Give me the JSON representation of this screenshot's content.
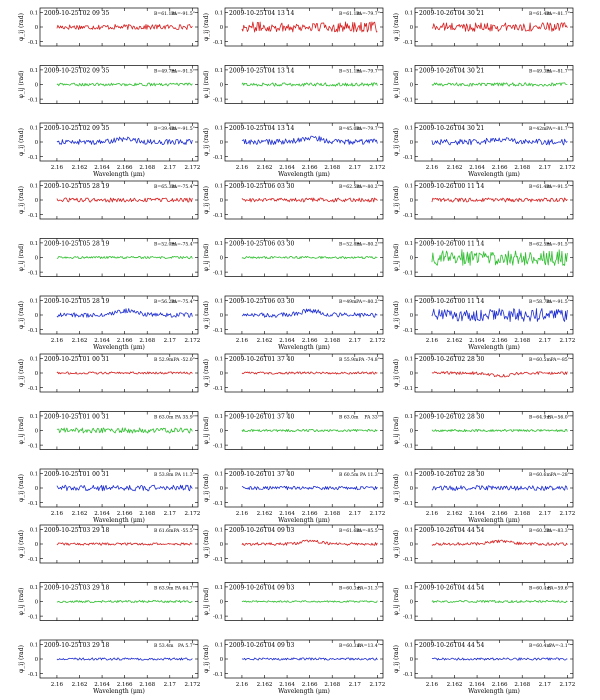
{
  "figure": {
    "x_label": "Wavelength (μm)",
    "x_ticks": [
      "2.16",
      "2.162",
      "2.164",
      "2.166",
      "2.168",
      "2.17",
      "2.172"
    ],
    "y_ticks": [
      "0.1",
      "0",
      "-0.1"
    ],
    "x_range": [
      2.1585,
      2.1725
    ],
    "y_range": [
      -0.13,
      0.13
    ],
    "colors": {
      "red": "#d62020",
      "green": "#2fbf2f",
      "blue": "#1f2fd0",
      "axis": "#000000"
    }
  },
  "chart_data": [
    {
      "type": "line",
      "panel": "r1c1",
      "row": 1,
      "col": 1,
      "date": "2009-10-25T02 09 35",
      "baseline": "B=61.1m",
      "pa": "PA=-91.5°",
      "ylabel": "φ_ij (rad)",
      "color": "red",
      "series": [
        {
          "x": [
            2.16,
            2.172
          ],
          "y": [
            0,
            0
          ]
        }
      ]
    },
    {
      "type": "line",
      "panel": "r1c1",
      "row": 1,
      "col": 1,
      "date": "2009-10-25T02 09 35",
      "baseline": "B=49.7m",
      "pa": "PA=-91.5°",
      "ylabel": "φ_ij (rad)",
      "color": "green",
      "series": [
        {
          "x": [
            2.16,
            2.172
          ],
          "y": [
            0,
            0
          ]
        }
      ]
    },
    {
      "type": "line",
      "panel": "r1c1",
      "row": 1,
      "col": 1,
      "date": "2009-10-25T02 09 35",
      "baseline": "B=39.4m",
      "pa": "PA=-91.5°",
      "ylabel": "φ_ij (rad)",
      "color": "blue",
      "series": [
        {
          "x": [
            2.16,
            2.172
          ],
          "y": [
            0,
            0
          ]
        }
      ]
    }
  ],
  "panels": [
    {
      "row": 1,
      "col": 1,
      "color": "red",
      "date": "2009-10-25T02 09 35",
      "b": "B=61.1m",
      "pa": "PA=-91.5°",
      "ylabel": "φ_ij (rad)",
      "noise": 0.018,
      "feature": 0.0
    },
    {
      "row": 1,
      "col": 2,
      "color": "red",
      "date": "2009-10-25T04 13 14",
      "b": "B=61.1m",
      "pa": "PA=-79.7°",
      "ylabel": "φ_ij (rad)",
      "noise": 0.035,
      "feature": 0.0
    },
    {
      "row": 1,
      "col": 3,
      "color": "red",
      "date": "2009-10-26T04 30 21",
      "b": "B=61.4m",
      "pa": "PA=-81.7°",
      "ylabel": "φ_ij (rad)",
      "noise": 0.03,
      "feature": 0.0
    },
    {
      "row": 2,
      "col": 1,
      "color": "green",
      "date": "2009-10-25T02 09 35",
      "b": "B=49.7m",
      "pa": "PA=-91.5°",
      "ylabel": "φ_ij (rad)",
      "noise": 0.01,
      "feature": 0.0
    },
    {
      "row": 2,
      "col": 2,
      "color": "green",
      "date": "2009-10-25T04 13 14",
      "b": "B=51.1m",
      "pa": "PA=-79.7°",
      "ylabel": "φ_ij (rad)",
      "noise": 0.012,
      "feature": 0.0
    },
    {
      "row": 2,
      "col": 3,
      "color": "green",
      "date": "2009-10-26T04 30 21",
      "b": "B=49.3m",
      "pa": "PA=-81.7°",
      "ylabel": "φ_ij (rad)",
      "noise": 0.012,
      "feature": 0.0
    },
    {
      "row": 3,
      "col": 1,
      "color": "blue",
      "date": "2009-10-25T02 09 35",
      "b": "B=39.4m",
      "pa": "PA=-91.5°",
      "ylabel": "φ_ij (rad)",
      "noise": 0.018,
      "feature": 0.02
    },
    {
      "row": 3,
      "col": 2,
      "color": "blue",
      "date": "2009-10-25T04 13 14",
      "b": "B=45.0m",
      "pa": "PA=-79.7°",
      "ylabel": "φ_ij (rad)",
      "noise": 0.02,
      "feature": 0.03
    },
    {
      "row": 3,
      "col": 3,
      "color": "blue",
      "date": "2009-10-26T04 30 21",
      "b": "B=42m",
      "pa": "PA=-81.7°",
      "ylabel": "φ_ij (rad)",
      "noise": 0.02,
      "feature": 0.02
    },
    {
      "row": 4,
      "col": 1,
      "color": "red",
      "date": "2009-10-25T05 28 19",
      "b": "B=65.3m",
      "pa": "PA=-75.4°",
      "ylabel": "φ_ij (rad)",
      "noise": 0.014,
      "feature": 0.0
    },
    {
      "row": 4,
      "col": 2,
      "color": "red",
      "date": "2009-10-25T06 03 30",
      "b": "B=62.5m",
      "pa": "PA=-80.2°",
      "ylabel": "φ_ij (rad)",
      "noise": 0.014,
      "feature": 0.0
    },
    {
      "row": 4,
      "col": 3,
      "color": "red",
      "date": "2009-10-26T00 11 14",
      "b": "B=61.4m",
      "pa": "PA=-91.5°",
      "ylabel": "φ_ij (rad)",
      "noise": 0.014,
      "feature": 0.0
    },
    {
      "row": 5,
      "col": 1,
      "color": "green",
      "date": "2009-10-25T05 28 19",
      "b": "B=52.0m",
      "pa": "PA=-75.4°",
      "ylabel": "φ_ij (rad)",
      "noise": 0.008,
      "feature": 0.0
    },
    {
      "row": 5,
      "col": 2,
      "color": "green",
      "date": "2009-10-25T06 03 30",
      "b": "B=52.8m",
      "pa": "PA=-80.2°",
      "ylabel": "φ_ij (rad)",
      "noise": 0.008,
      "feature": 0.0
    },
    {
      "row": 5,
      "col": 3,
      "color": "green",
      "date": "2009-10-26T00 11 14",
      "b": "B=62.5m",
      "pa": "PA=-91.5°",
      "ylabel": "φ_ij (rad)",
      "noise": 0.055,
      "feature": 0.0
    },
    {
      "row": 6,
      "col": 1,
      "color": "blue",
      "date": "2009-10-25T05 28 19",
      "b": "B=56.2m",
      "pa": "PA=-75.4°",
      "ylabel": "φ_ij (rad)",
      "noise": 0.016,
      "feature": 0.03
    },
    {
      "row": 6,
      "col": 2,
      "color": "blue",
      "date": "2009-10-25T06 03 30",
      "b": "B=49m",
      "pa": "PA=-80.2°",
      "ylabel": "φ_ij (rad)",
      "noise": 0.016,
      "feature": 0.03
    },
    {
      "row": 6,
      "col": 3,
      "color": "blue",
      "date": "2009-10-26T00 11 14",
      "b": "B=58.7m",
      "pa": "PA=-91.5°",
      "ylabel": "φ_ij (rad)",
      "noise": 0.045,
      "feature": 0.0
    },
    {
      "row": 7,
      "col": 1,
      "color": "red",
      "date": "2009-10-25T01 00 31",
      "b": "B 52.9m",
      "pa": "PA -52.0°",
      "ylabel": "φ_ij (rad)",
      "noise": 0.008,
      "feature": 0.0
    },
    {
      "row": 7,
      "col": 2,
      "color": "red",
      "date": "2009-10-26T01 37 40",
      "b": "B 55.9m",
      "pa": "PA -74.8°",
      "ylabel": "φ_ij (rad)",
      "noise": 0.008,
      "feature": 0.0
    },
    {
      "row": 7,
      "col": 3,
      "color": "red",
      "date": "2009-10-26T02 28 30",
      "b": "B=60.5m",
      "pa": "PA=-85°",
      "ylabel": "φ_ij (rad)",
      "noise": 0.01,
      "feature": -0.02
    },
    {
      "row": 8,
      "col": 1,
      "color": "green",
      "date": "2009-10-25T01 00 31",
      "b": "B 63.0m",
      "pa": "PA 35.9°",
      "ylabel": "φ_ij (rad)",
      "noise": 0.018,
      "feature": 0.0
    },
    {
      "row": 8,
      "col": 2,
      "color": "green",
      "date": "2009-10-26T01 37 40",
      "b": "B 63.0m",
      "pa": "PA 33°",
      "ylabel": "φ_ij (rad)",
      "noise": 0.008,
      "feature": 0.0
    },
    {
      "row": 8,
      "col": 3,
      "color": "green",
      "date": "2009-10-26T02 28 30",
      "b": "B=64.9m",
      "pa": "PA=56.0°",
      "ylabel": "φ_ij (rad)",
      "noise": 0.008,
      "feature": 0.0
    },
    {
      "row": 9,
      "col": 1,
      "color": "blue",
      "date": "2009-10-25T01 00 31",
      "b": "B 53.8m",
      "pa": "PA 11.3°",
      "ylabel": "φ_ij (rad)",
      "noise": 0.02,
      "feature": 0.0
    },
    {
      "row": 9,
      "col": 2,
      "color": "blue",
      "date": "2009-10-26T01 37 40",
      "b": "B 60.5m",
      "pa": "PA 11.3°",
      "ylabel": "φ_ij (rad)",
      "noise": 0.012,
      "feature": 0.0
    },
    {
      "row": 9,
      "col": 3,
      "color": "blue",
      "date": "2009-10-26T02 28 30",
      "b": "B=60.6m",
      "pa": "PA=-28°",
      "ylabel": "φ_ij (rad)",
      "noise": 0.016,
      "feature": 0.0
    },
    {
      "row": 10,
      "col": 1,
      "color": "red",
      "date": "2009-10-25T03 29 18",
      "b": "B 61.6m",
      "pa": "PA -55.5°",
      "ylabel": "φ_ij (rad)",
      "noise": 0.008,
      "feature": 0.0
    },
    {
      "row": 10,
      "col": 2,
      "color": "red",
      "date": "2009-10-26T04 09 03",
      "b": "B=61.6m",
      "pa": "PA=-85.5°",
      "ylabel": "φ_ij (rad)",
      "noise": 0.01,
      "feature": 0.02
    },
    {
      "row": 10,
      "col": 3,
      "color": "red",
      "date": "2009-10-26T04 44 54",
      "b": "B=60.2m",
      "pa": "PA=-83.3°",
      "ylabel": "φ_ij (rad)",
      "noise": 0.01,
      "feature": 0.02
    },
    {
      "row": 11,
      "col": 1,
      "color": "green",
      "date": "2009-10-25T03 29 18",
      "b": "B 63.9m",
      "pa": "PA 64.7°",
      "ylabel": "φ_ij (rad)",
      "noise": 0.008,
      "feature": 0.0
    },
    {
      "row": 11,
      "col": 2,
      "color": "green",
      "date": "2009-10-26T04 09 03",
      "b": "B=60.3m",
      "pa": "PA=31.3°",
      "ylabel": "φ_ij (rad)",
      "noise": 0.006,
      "feature": 0.0
    },
    {
      "row": 11,
      "col": 3,
      "color": "green",
      "date": "2009-10-26T04 44 54",
      "b": "B=60.4m",
      "pa": "PA=59.6°",
      "ylabel": "φ_ij (rad)",
      "noise": 0.008,
      "feature": 0.0
    },
    {
      "row": 12,
      "col": 1,
      "color": "blue",
      "date": "2009-10-25T03 29 18",
      "b": "B 53.4m",
      "pa": "PA 5.7°",
      "ylabel": "φ_ij (rad)",
      "noise": 0.008,
      "feature": 0.0
    },
    {
      "row": 12,
      "col": 2,
      "color": "blue",
      "date": "2009-10-26T04 09 03",
      "b": "B=60.3m",
      "pa": "PA=13.4°",
      "ylabel": "φ_ij (rad)",
      "noise": 0.008,
      "feature": 0.0
    },
    {
      "row": 12,
      "col": 3,
      "color": "blue",
      "date": "2009-10-26T04 44 54",
      "b": "B=60.4m",
      "pa": "PA=-3.1°",
      "ylabel": "φ_ij (rad)",
      "noise": 0.008,
      "feature": 0.0
    }
  ]
}
